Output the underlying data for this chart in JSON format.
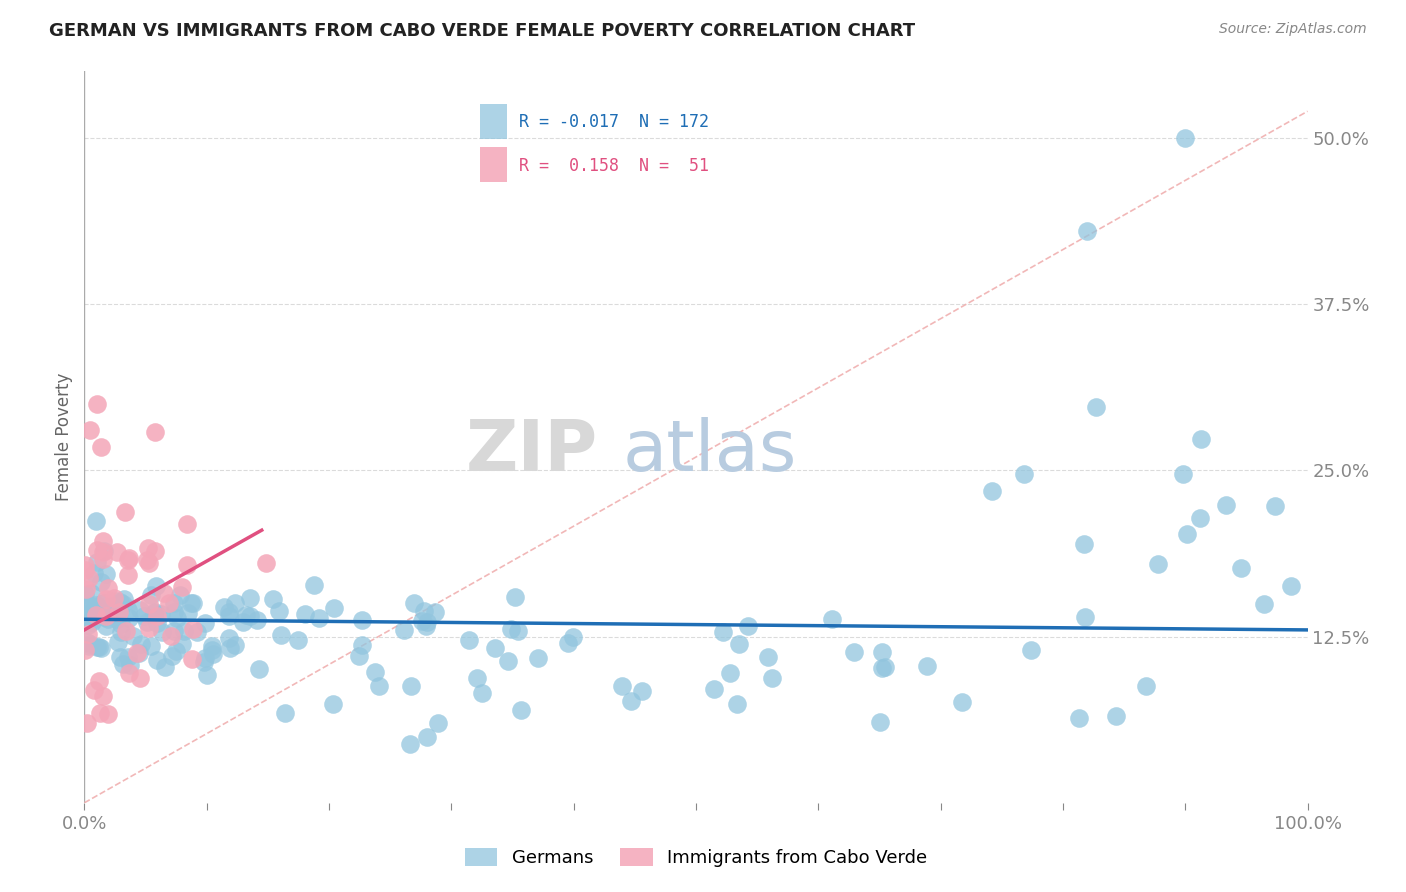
{
  "title": "GERMAN VS IMMIGRANTS FROM CABO VERDE FEMALE POVERTY CORRELATION CHART",
  "source": "Source: ZipAtlas.com",
  "ylabel": "Female Poverty",
  "legend_blue_R": "-0.017",
  "legend_blue_N": "172",
  "legend_pink_R": "0.158",
  "legend_pink_N": "51",
  "legend_label_blue": "Germans",
  "legend_label_pink": "Immigrants from Cabo Verde",
  "blue_color": "#92c5de",
  "pink_color": "#f4a6b8",
  "blue_line_color": "#1f6eb5",
  "pink_line_color": "#e05080",
  "diag_line_color": "#f0b0b0",
  "grid_color": "#cccccc",
  "title_color": "#222222",
  "source_color": "#888888",
  "ylabel_color": "#666666",
  "tick_color": "#888888",
  "watermark_zip_color": "#d8d8d8",
  "watermark_atlas_color": "#b8cce0",
  "ytick_vals": [
    12.5,
    25.0,
    37.5,
    50.0
  ],
  "ytick_labels": [
    "12.5%",
    "25.0%",
    "37.5%",
    "50.0%"
  ],
  "ymin": 0.0,
  "ymax": 55.0,
  "xmin": 0.0,
  "xmax": 100.0
}
